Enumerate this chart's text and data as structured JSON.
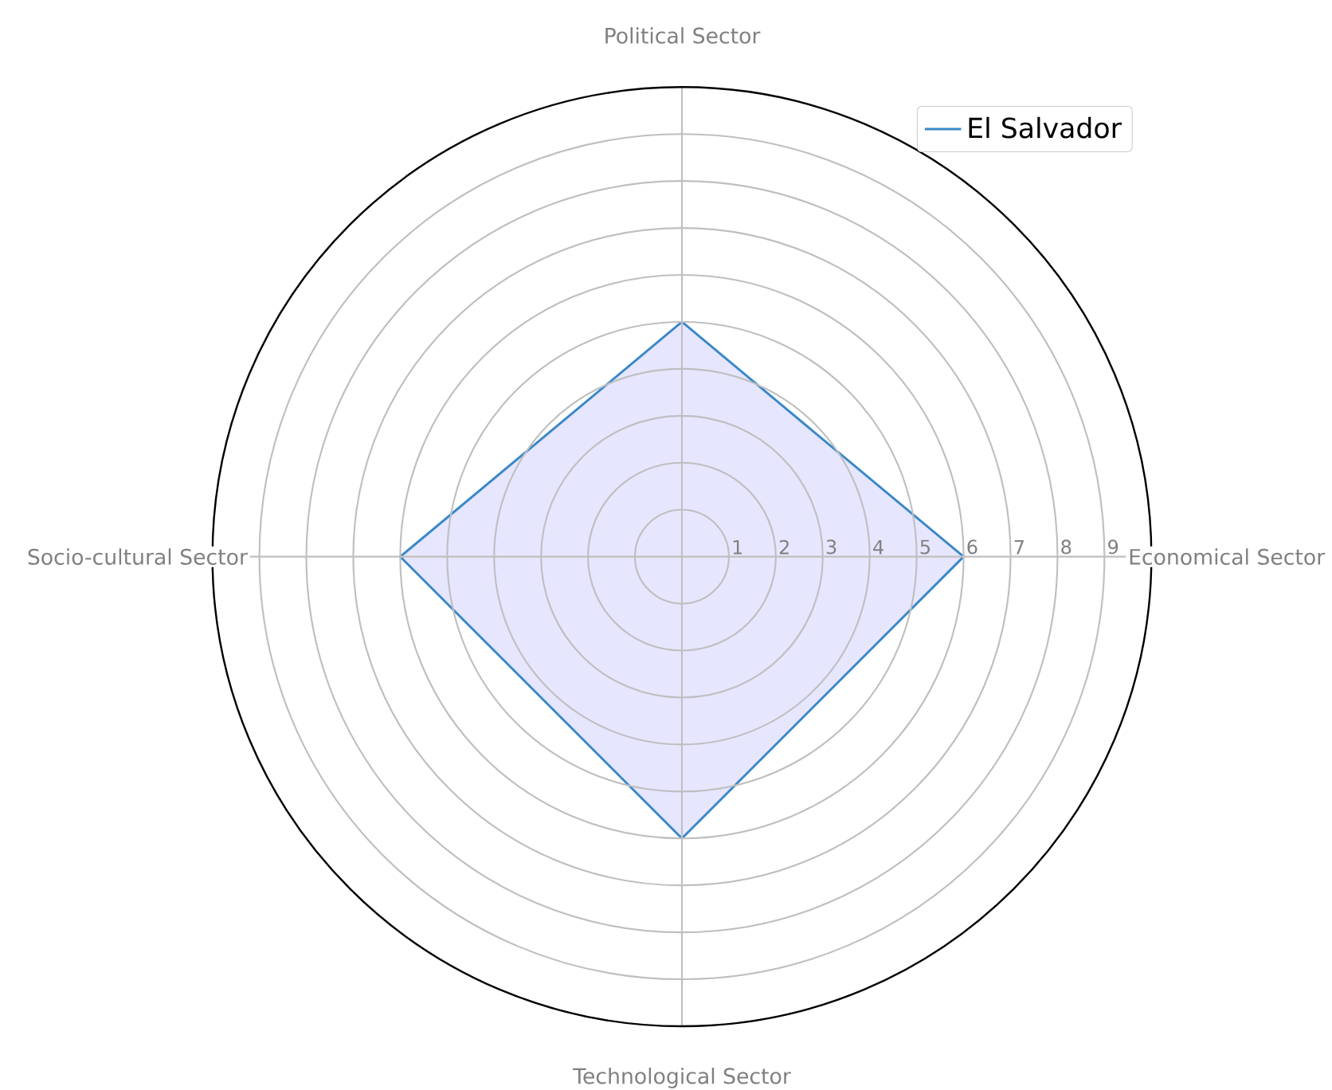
{
  "chart_data": {
    "type": "radar",
    "categories": [
      "Political Sector",
      "Economical Sector",
      "Technological Sector",
      "Socio-cultural Sector"
    ],
    "series": [
      {
        "name": "El Salvador",
        "color": "#3a88c8",
        "values": [
          5,
          6,
          6,
          6
        ]
      }
    ],
    "ylim": [
      0,
      10
    ],
    "yticks": [
      1,
      2,
      3,
      4,
      5,
      6,
      7,
      8,
      9
    ],
    "grid": true,
    "legend": "top right"
  }
}
